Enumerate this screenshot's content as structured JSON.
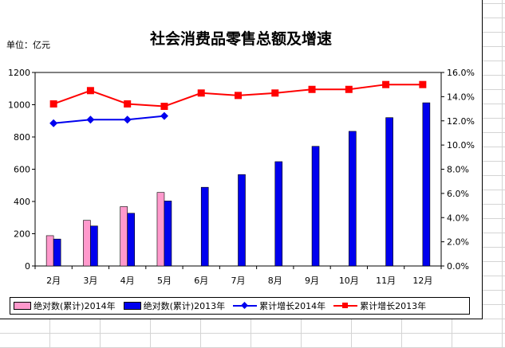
{
  "unit_label": "单位：亿元",
  "chart_data": {
    "type": "bar",
    "title": "社会消费品零售总额及增速",
    "categories": [
      "2月",
      "3月",
      "4月",
      "5月",
      "6月",
      "7月",
      "8月",
      "9月",
      "10月",
      "11月",
      "12月"
    ],
    "y_left": {
      "min": 0,
      "max": 1200,
      "step": 200,
      "ticks": [
        "0",
        "200",
        "400",
        "600",
        "800",
        "1000",
        "1200"
      ]
    },
    "y_right": {
      "min": 0,
      "max": 16,
      "step": 2,
      "ticks": [
        "0.0%",
        "2.0%",
        "4.0%",
        "6.0%",
        "8.0%",
        "10.0%",
        "12.0%",
        "14.0%",
        "16.0%"
      ]
    },
    "bar_series": [
      {
        "name": "绝对数(累计)2014年",
        "color": "#ff99cc",
        "values": [
          188,
          283,
          368,
          456,
          null,
          null,
          null,
          null,
          null,
          null,
          null
        ]
      },
      {
        "name": "绝对数(累计)2013年",
        "color": "#0000ee",
        "values": [
          167,
          248,
          327,
          403,
          488,
          567,
          647,
          742,
          835,
          920,
          1012
        ]
      }
    ],
    "line_series": [
      {
        "name": "累计增长2014年",
        "color": "#0000ee",
        "marker": "diamond",
        "values": [
          11.8,
          12.1,
          12.1,
          12.4,
          null,
          null,
          null,
          null,
          null,
          null,
          null
        ]
      },
      {
        "name": "累计增长2013年",
        "color": "#ff0000",
        "marker": "square",
        "values": [
          13.4,
          14.5,
          13.4,
          13.2,
          14.3,
          14.1,
          14.3,
          14.6,
          14.6,
          15.0,
          15.0
        ]
      }
    ],
    "grid": false,
    "legend_position": "bottom"
  }
}
